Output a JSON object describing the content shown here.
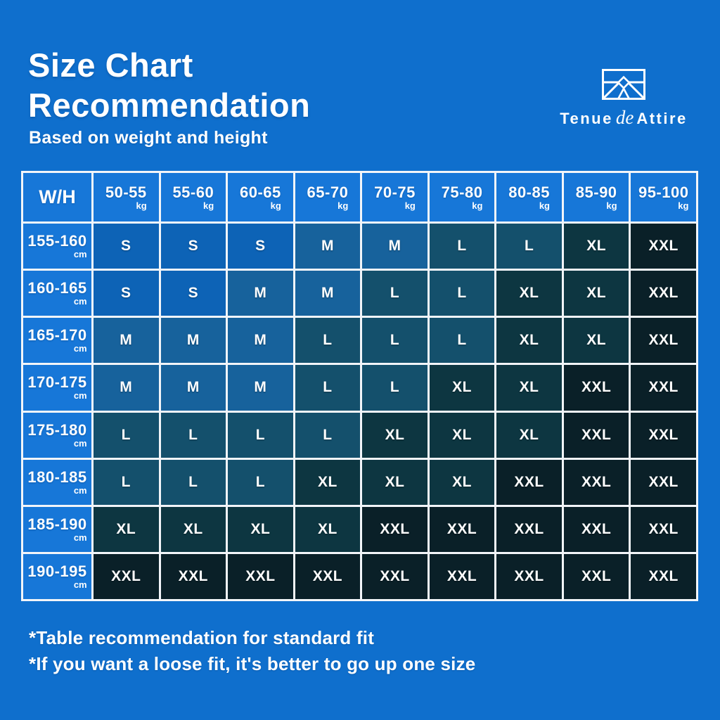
{
  "page": {
    "background_color": "#0F6FCD",
    "title_line1": "Size Chart",
    "title_line2": "Recommendation",
    "subtitle": "Based on weight and height",
    "notes": [
      "*Table recommendation for standard fit",
      "*If you want a loose fit, it's better to go up one size"
    ]
  },
  "brand": {
    "name_part1": "Tenue",
    "name_part2": "de",
    "name_part3": "Attire",
    "icon": "mountain-frame-icon",
    "color": "#ffffff"
  },
  "table": {
    "corner_label": "W/H",
    "weight_unit": "kg",
    "height_unit": "cm",
    "weights": [
      "50-55",
      "55-60",
      "60-65",
      "65-70",
      "70-75",
      "75-80",
      "80-85",
      "85-90",
      "95-100"
    ],
    "heights": [
      "155-160",
      "160-165",
      "165-170",
      "170-175",
      "175-180",
      "180-185",
      "185-190",
      "190-195"
    ],
    "grid": [
      [
        "S",
        "S",
        "S",
        "M",
        "M",
        "L",
        "L",
        "XL",
        "XXL"
      ],
      [
        "S",
        "S",
        "M",
        "M",
        "L",
        "L",
        "XL",
        "XL",
        "XXL"
      ],
      [
        "M",
        "M",
        "M",
        "L",
        "L",
        "L",
        "XL",
        "XL",
        "XXL"
      ],
      [
        "M",
        "M",
        "M",
        "L",
        "L",
        "XL",
        "XL",
        "XXL",
        "XXL"
      ],
      [
        "L",
        "L",
        "L",
        "L",
        "XL",
        "XL",
        "XL",
        "XXL",
        "XXL"
      ],
      [
        "L",
        "L",
        "L",
        "XL",
        "XL",
        "XL",
        "XXL",
        "XXL",
        "XXL"
      ],
      [
        "XL",
        "XL",
        "XL",
        "XL",
        "XXL",
        "XXL",
        "XXL",
        "XXL",
        "XXL"
      ],
      [
        "XXL",
        "XXL",
        "XXL",
        "XXL",
        "XXL",
        "XXL",
        "XXL",
        "XXL",
        "XXL"
      ]
    ],
    "size_colors": {
      "S": "#0D63B6",
      "M": "#17629C",
      "L": "#14506C",
      "XL": "#0D3641",
      "XXL": "#0A2028"
    },
    "header_cell_color": "#1777D8",
    "border_color": "#F2F5F9"
  },
  "chart_data": {
    "type": "heatmap",
    "title": "Size Chart Recommendation",
    "subtitle": "Based on weight and height",
    "x_categories_kg": [
      "50-55",
      "55-60",
      "60-65",
      "65-70",
      "70-75",
      "75-80",
      "80-85",
      "85-90",
      "95-100"
    ],
    "y_categories_cm": [
      "155-160",
      "160-165",
      "165-170",
      "170-175",
      "175-180",
      "180-185",
      "185-190",
      "190-195"
    ],
    "values": [
      [
        "S",
        "S",
        "S",
        "M",
        "M",
        "L",
        "L",
        "XL",
        "XXL"
      ],
      [
        "S",
        "S",
        "M",
        "M",
        "L",
        "L",
        "XL",
        "XL",
        "XXL"
      ],
      [
        "M",
        "M",
        "M",
        "L",
        "L",
        "L",
        "XL",
        "XL",
        "XXL"
      ],
      [
        "M",
        "M",
        "M",
        "L",
        "L",
        "XL",
        "XL",
        "XXL",
        "XXL"
      ],
      [
        "L",
        "L",
        "L",
        "L",
        "XL",
        "XL",
        "XL",
        "XXL",
        "XXL"
      ],
      [
        "L",
        "L",
        "L",
        "XL",
        "XL",
        "XL",
        "XXL",
        "XXL",
        "XXL"
      ],
      [
        "XL",
        "XL",
        "XL",
        "XL",
        "XXL",
        "XXL",
        "XXL",
        "XXL",
        "XXL"
      ],
      [
        "XXL",
        "XXL",
        "XXL",
        "XXL",
        "XXL",
        "XXL",
        "XXL",
        "XXL",
        "XXL"
      ]
    ],
    "value_color_scale": {
      "S": "#0D63B6",
      "M": "#17629C",
      "L": "#14506C",
      "XL": "#0D3641",
      "XXL": "#0A2028"
    },
    "annotations": [
      "*Table recommendation for standard fit",
      "*If you want a loose fit, it's better to go up one size"
    ]
  }
}
